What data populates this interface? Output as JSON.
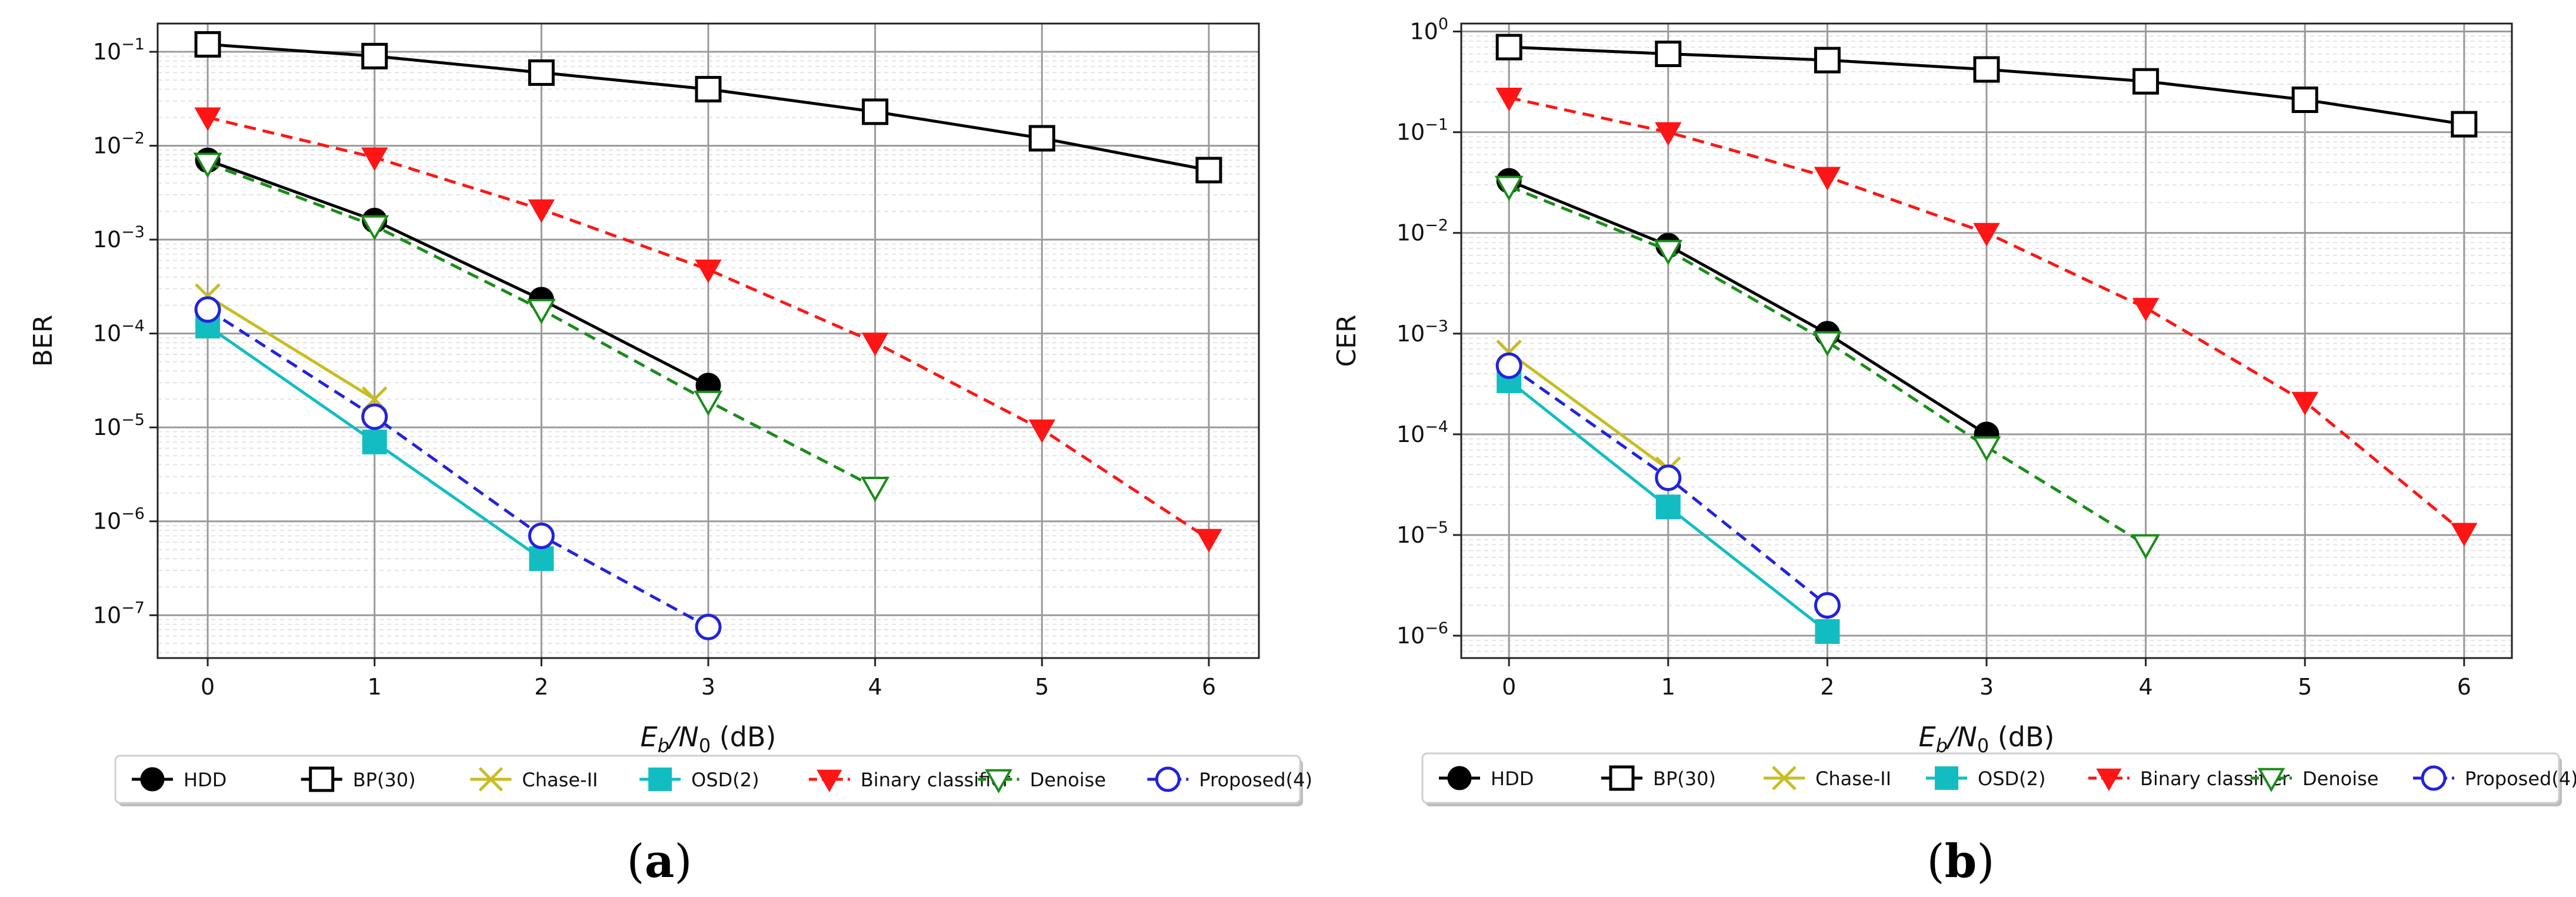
{
  "chart_data": [
    {
      "type": "line",
      "yscale": "log",
      "caption_letter": "a",
      "ylabel": "BER",
      "xlabel": {
        "main": "E",
        "sub1": "b",
        "slash": "/N",
        "sub2": "0",
        "unit": " (dB)"
      },
      "xlim": [
        -0.3,
        6.3
      ],
      "ylim": [
        3.5e-08,
        0.2
      ],
      "xticks": [
        0,
        1,
        2,
        3,
        4,
        5,
        6
      ],
      "yticks": [
        {
          "value": 1e-07,
          "base": "10",
          "exp": "−7"
        },
        {
          "value": 1e-06,
          "base": "10",
          "exp": "−6"
        },
        {
          "value": 1e-05,
          "base": "10",
          "exp": "−5"
        },
        {
          "value": 0.0001,
          "base": "10",
          "exp": "−4"
        },
        {
          "value": 0.001,
          "base": "10",
          "exp": "−3"
        },
        {
          "value": 0.01,
          "base": "10",
          "exp": "−2"
        },
        {
          "value": 0.1,
          "base": "10",
          "exp": "−1"
        }
      ],
      "series": [
        {
          "name": "HDD",
          "x": [
            0,
            1,
            2,
            3
          ],
          "y": [
            0.007,
            0.0016,
            0.00023,
            2.8e-05
          ],
          "color": "#000000",
          "marker": "filled-circle",
          "linestyle": "solid"
        },
        {
          "name": "BP(30)",
          "x": [
            0,
            1,
            2,
            3,
            4,
            5,
            6
          ],
          "y": [
            0.12,
            0.09,
            0.06,
            0.04,
            0.023,
            0.012,
            0.0055
          ],
          "color": "#000000",
          "marker": "open-square",
          "linestyle": "solid"
        },
        {
          "name": "Chase-II",
          "x": [
            0,
            1
          ],
          "y": [
            0.00025,
            2e-05
          ],
          "color": "#c8bd22",
          "marker": "x",
          "linestyle": "solid"
        },
        {
          "name": "OSD(2)",
          "x": [
            0,
            1,
            2
          ],
          "y": [
            0.00012,
            7e-06,
            4e-07
          ],
          "color": "#12bdc2",
          "marker": "filled-square",
          "linestyle": "solid"
        },
        {
          "name": "Binary classifier",
          "x": [
            0,
            1,
            2,
            3,
            4,
            5,
            6
          ],
          "y": [
            0.02,
            0.0075,
            0.0021,
            0.00048,
            8e-05,
            9.5e-06,
            6.5e-07
          ],
          "color": "#ff1515",
          "marker": "filled-triangle-down",
          "linestyle": "dashed"
        },
        {
          "name": "Denoise",
          "x": [
            0,
            1,
            2,
            3,
            4
          ],
          "y": [
            0.0065,
            0.0014,
            0.00018,
            1.9e-05,
            2.3e-06
          ],
          "color": "#1a8c1a",
          "marker": "open-triangle-down",
          "linestyle": "dashed"
        },
        {
          "name": "Proposed(4)",
          "x": [
            0,
            1,
            2,
            3
          ],
          "y": [
            0.00018,
            1.3e-05,
            7e-07,
            7.5e-08
          ],
          "color": "#2222dd",
          "marker": "open-circle",
          "linestyle": "dashed"
        }
      ]
    },
    {
      "type": "line",
      "yscale": "log",
      "caption_letter": "b",
      "ylabel": "CER",
      "xlabel": {
        "main": "E",
        "sub1": "b",
        "slash": "/N",
        "sub2": "0",
        "unit": " (dB)"
      },
      "xlim": [
        -0.3,
        6.3
      ],
      "ylim": [
        6e-07,
        1.2
      ],
      "xticks": [
        0,
        1,
        2,
        3,
        4,
        5,
        6
      ],
      "yticks": [
        {
          "value": 1e-06,
          "base": "10",
          "exp": "−6"
        },
        {
          "value": 1e-05,
          "base": "10",
          "exp": "−5"
        },
        {
          "value": 0.0001,
          "base": "10",
          "exp": "−4"
        },
        {
          "value": 0.001,
          "base": "10",
          "exp": "−3"
        },
        {
          "value": 0.01,
          "base": "10",
          "exp": "−2"
        },
        {
          "value": 0.1,
          "base": "10",
          "exp": "−1"
        },
        {
          "value": 1,
          "base": "10",
          "exp": "0"
        }
      ],
      "series": [
        {
          "name": "HDD",
          "x": [
            0,
            1,
            2,
            3
          ],
          "y": [
            0.033,
            0.0075,
            0.001,
            0.0001
          ],
          "color": "#000000",
          "marker": "filled-circle",
          "linestyle": "solid"
        },
        {
          "name": "BP(30)",
          "x": [
            0,
            1,
            2,
            3,
            4,
            5,
            6
          ],
          "y": [
            0.7,
            0.6,
            0.52,
            0.42,
            0.32,
            0.21,
            0.12
          ],
          "color": "#000000",
          "marker": "open-square",
          "linestyle": "solid"
        },
        {
          "name": "Chase-II",
          "x": [
            0,
            1
          ],
          "y": [
            0.00065,
            4.5e-05
          ],
          "color": "#c8bd22",
          "marker": "x",
          "linestyle": "solid"
        },
        {
          "name": "OSD(2)",
          "x": [
            0,
            1,
            2
          ],
          "y": [
            0.00034,
            1.9e-05,
            1.1e-06
          ],
          "color": "#12bdc2",
          "marker": "filled-square",
          "linestyle": "solid"
        },
        {
          "name": "Binary classifier",
          "x": [
            0,
            1,
            2,
            3,
            4,
            5,
            6
          ],
          "y": [
            0.22,
            0.1,
            0.036,
            0.01,
            0.0018,
            0.00021,
            1.05e-05
          ],
          "color": "#ff1515",
          "marker": "filled-triangle-down",
          "linestyle": "dashed"
        },
        {
          "name": "Denoise",
          "x": [
            0,
            1,
            2,
            3,
            4
          ],
          "y": [
            0.029,
            0.0067,
            0.00083,
            7.5e-05,
            8e-06
          ],
          "color": "#1a8c1a",
          "marker": "open-triangle-down",
          "linestyle": "dashed"
        },
        {
          "name": "Proposed(4)",
          "x": [
            0,
            1,
            2
          ],
          "y": [
            0.00048,
            3.7e-05,
            2e-06
          ],
          "color": "#2222dd",
          "marker": "open-circle",
          "linestyle": "dashed"
        }
      ]
    }
  ]
}
